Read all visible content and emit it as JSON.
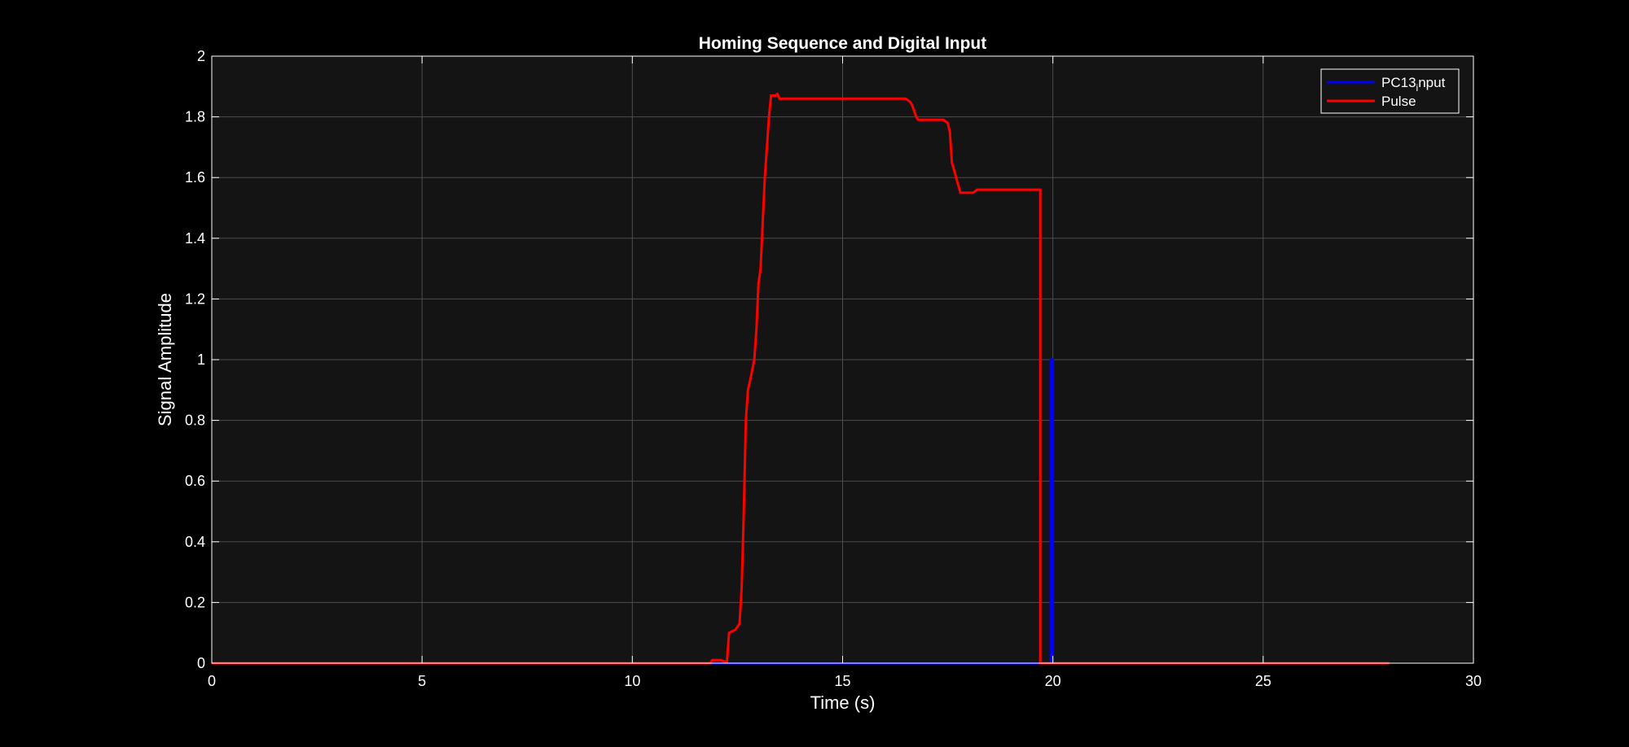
{
  "chart_data": {
    "type": "line",
    "title": "Homing Sequence and Digital Input",
    "xlabel": "Time (s)",
    "ylabel": "Signal Amplitude",
    "xlim": [
      0,
      30
    ],
    "ylim": [
      0,
      2
    ],
    "xticks": [
      0,
      5,
      10,
      15,
      20,
      25,
      30
    ],
    "yticks": [
      0,
      0.2,
      0.4,
      0.6,
      0.8,
      1,
      1.2,
      1.4,
      1.6,
      1.8,
      2
    ],
    "xtick_labels": [
      "0",
      "5",
      "10",
      "15",
      "20",
      "25",
      "30"
    ],
    "ytick_labels": [
      "0",
      "0.2",
      "0.4",
      "0.6",
      "0.8",
      "1",
      "1.2",
      "1.4",
      "1.6",
      "1.8",
      "2"
    ],
    "grid": true,
    "legend_position": "top-right",
    "background_color": "#141414",
    "figure_color": "#000000",
    "grid_color": "#4d4d4d",
    "series": [
      {
        "name": "PC13 input",
        "legend_label_main": "PC13",
        "legend_label_sub": "i",
        "legend_label_tail": "nput",
        "color": "#0000ff",
        "x": [
          0,
          12.0,
          19.95,
          19.95,
          20.0,
          20.0,
          28.0
        ],
        "y": [
          0,
          0,
          0,
          1,
          1,
          0,
          0
        ]
      },
      {
        "name": "Pulse",
        "color": "#ff0000",
        "x": [
          0,
          11.85,
          11.9,
          12.0,
          12.1,
          12.2,
          12.25,
          12.3,
          12.45,
          12.55,
          12.6,
          12.65,
          12.7,
          12.75,
          12.8,
          12.9,
          12.95,
          13.0,
          13.05,
          13.1,
          13.15,
          13.2,
          13.25,
          13.3,
          13.4,
          13.45,
          13.5,
          14.0,
          15.0,
          16.0,
          16.5,
          16.6,
          16.65,
          16.75,
          16.8,
          17.0,
          17.4,
          17.5,
          17.55,
          17.6,
          17.7,
          17.8,
          18.0,
          18.1,
          18.2,
          18.5,
          19.0,
          19.5,
          19.7,
          19.7,
          20.5,
          25.0,
          28.0
        ],
        "y": [
          0,
          0,
          0.01,
          0.01,
          0.01,
          0.005,
          0.005,
          0.1,
          0.11,
          0.13,
          0.25,
          0.5,
          0.8,
          0.9,
          0.93,
          1.0,
          1.1,
          1.25,
          1.3,
          1.45,
          1.6,
          1.7,
          1.8,
          1.87,
          1.87,
          1.875,
          1.86,
          1.86,
          1.86,
          1.86,
          1.86,
          1.85,
          1.84,
          1.8,
          1.79,
          1.79,
          1.79,
          1.78,
          1.75,
          1.65,
          1.6,
          1.55,
          1.55,
          1.55,
          1.56,
          1.56,
          1.56,
          1.56,
          1.56,
          0,
          0,
          0,
          0
        ]
      }
    ]
  }
}
